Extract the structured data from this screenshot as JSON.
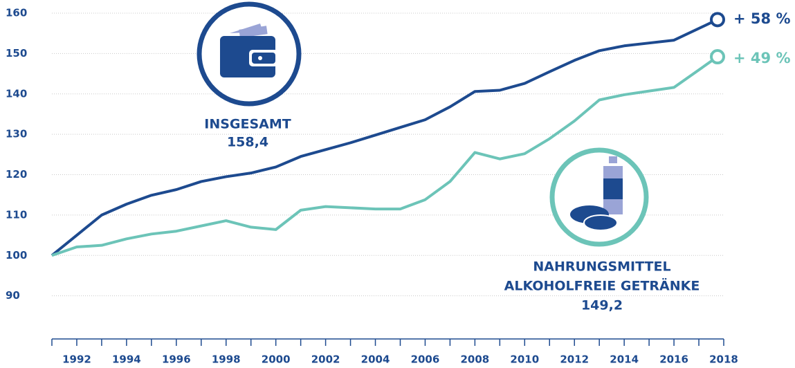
{
  "chart_data": {
    "type": "line",
    "x": [
      1991,
      1992,
      1993,
      1994,
      1995,
      1996,
      1997,
      1998,
      1999,
      2000,
      2001,
      2002,
      2003,
      2004,
      2005,
      2006,
      2007,
      2008,
      2009,
      2010,
      2011,
      2012,
      2013,
      2014,
      2015,
      2016,
      2017.75
    ],
    "series": [
      {
        "name": "INSGESAMT",
        "color": "#1d4a8f",
        "values": [
          100,
          105,
          110,
          112.7,
          114.9,
          116.3,
          118.3,
          119.5,
          120.4,
          121.9,
          124.5,
          126.2,
          127.9,
          129.8,
          131.7,
          133.6,
          136.8,
          140.6,
          140.9,
          142.6,
          145.5,
          148.3,
          150.7,
          151.9,
          152.6,
          153.3,
          158.4
        ],
        "value_label": "158,4",
        "change": "+ 58 %"
      },
      {
        "name": "NAHRUNGSMITTEL",
        "name2": "ALKOHOLFREIE GETRÄNKE",
        "color": "#6cc4b8",
        "values": [
          100,
          102.1,
          102.5,
          104.1,
          105.3,
          106,
          107.3,
          108.6,
          107,
          106.4,
          111.2,
          112.1,
          111.8,
          111.5,
          111.5,
          113.8,
          118.3,
          125.5,
          123.9,
          125.2,
          128.9,
          133.3,
          138.5,
          139.8,
          140.7,
          141.6,
          149.2
        ],
        "value_label": "149,2",
        "change": "+ 49 %"
      }
    ],
    "xlim": [
      1991,
      2018
    ],
    "xticks": [
      1992,
      1994,
      1996,
      1998,
      2000,
      2002,
      2004,
      2006,
      2008,
      2010,
      2012,
      2014,
      2016,
      2018
    ],
    "ylim": [
      80,
      160
    ],
    "yticks": [
      90,
      100,
      110,
      120,
      130,
      140,
      150,
      160
    ],
    "grid": true
  }
}
